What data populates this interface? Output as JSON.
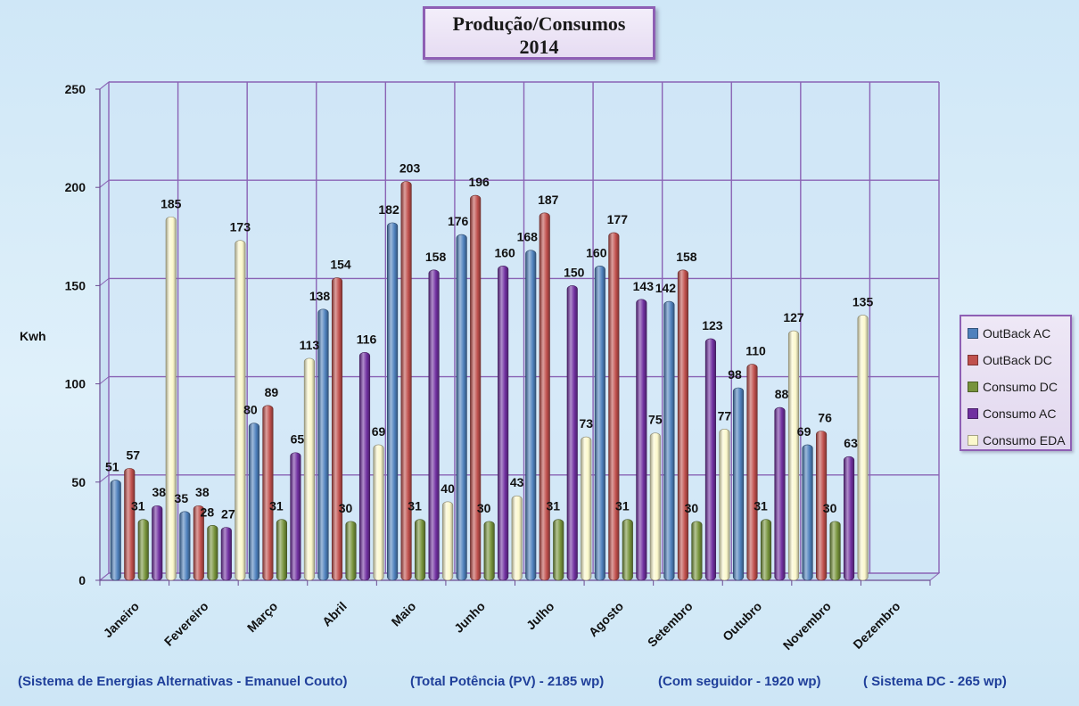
{
  "chart_data": {
    "type": "bar",
    "title_line1": "Produção/Consumos",
    "title_line2": "2014",
    "ylabel": "Kwh",
    "xlabel": "",
    "ylim": [
      0,
      250
    ],
    "yticks": [
      0,
      50,
      100,
      150,
      200,
      250
    ],
    "grid": true,
    "legend_position": "right",
    "categories": [
      "Janeiro",
      "Fevereiro",
      "Março",
      "Abril",
      "Maio",
      "Junho",
      "Julho",
      "Agosto",
      "Setembro",
      "Outubro",
      "Novembro",
      "Dezembro"
    ],
    "series": [
      {
        "name": "OutBack AC",
        "color": "#4f81bd",
        "values": [
          51,
          35,
          80,
          138,
          182,
          176,
          168,
          160,
          142,
          98,
          69,
          null
        ]
      },
      {
        "name": "OutBack DC",
        "color": "#c0504d",
        "values": [
          57,
          38,
          89,
          154,
          203,
          196,
          187,
          177,
          158,
          110,
          76,
          null
        ]
      },
      {
        "name": "Consumo DC",
        "color": "#77933c",
        "values": [
          31,
          28,
          31,
          30,
          31,
          30,
          31,
          31,
          30,
          31,
          30,
          null
        ]
      },
      {
        "name": "Consumo AC",
        "color": "#7030a0",
        "values": [
          38,
          27,
          65,
          116,
          158,
          160,
          150,
          143,
          123,
          88,
          63,
          null
        ]
      },
      {
        "name": "Consumo EDA",
        "color": "#fbf8cc",
        "values": [
          185,
          173,
          113,
          69,
          40,
          43,
          73,
          75,
          77,
          127,
          135,
          null
        ]
      }
    ]
  },
  "footer": {
    "note1": "(Sistema de Energias Alternativas  - Emanuel Couto)",
    "note2": "(Total Potência (PV) - 2185 wp)",
    "note3": "(Com seguidor - 1920 wp)",
    "note4": "( Sistema DC - 265 wp)"
  }
}
